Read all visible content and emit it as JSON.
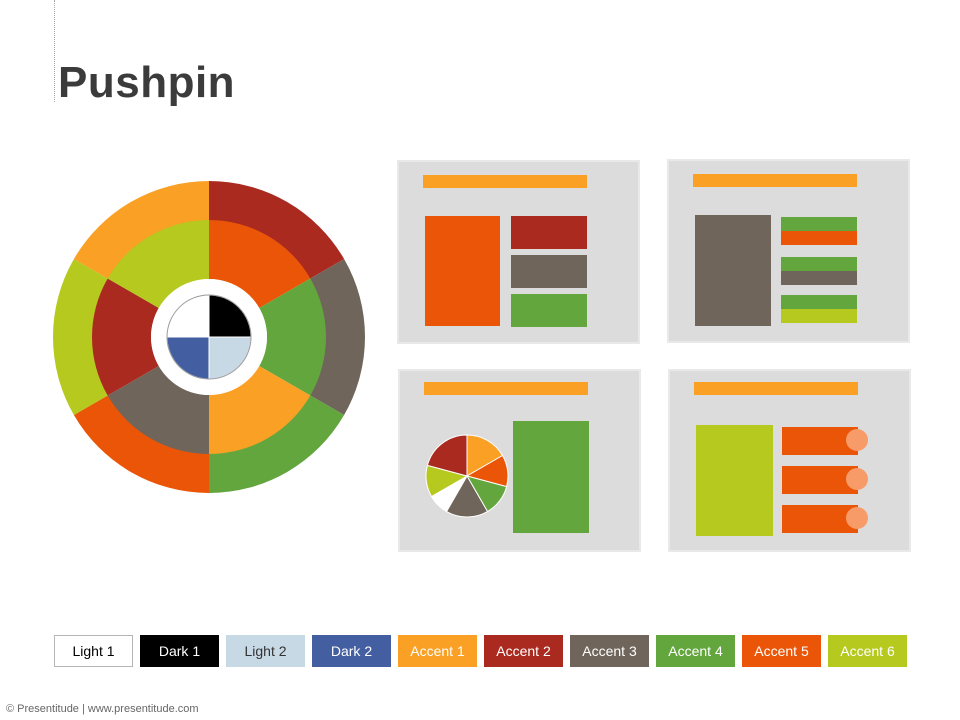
{
  "title": "Pushpin",
  "footer": "© Presentitude | www.presentitude.com",
  "colors": {
    "light1": "#ffffff",
    "dark1": "#000000",
    "light2": "#c8d9e6",
    "dark2": "#435ea1",
    "accent1": "#f9a025",
    "accent2": "#ab2a1f",
    "accent3": "#6f655a",
    "accent4": "#62a63d",
    "accent5": "#ea5507",
    "accent6": "#b5c91e",
    "placeholder_bg": "#dcdcdc",
    "pushpin_dot": "#f79b69"
  },
  "swatches": [
    {
      "label": "Light 1",
      "bg": "#ffffff",
      "fg": "#000000",
      "border": "#b5b5b5"
    },
    {
      "label": "Dark 1",
      "bg": "#000000",
      "fg": "#ffffff",
      "border": "#000000"
    },
    {
      "label": "Light 2",
      "bg": "#c8d9e6",
      "fg": "#333333",
      "border": "#c8d9e6"
    },
    {
      "label": "Dark 2",
      "bg": "#435ea1",
      "fg": "#ffffff",
      "border": "#435ea1"
    },
    {
      "label": "Accent 1",
      "bg": "#f9a025",
      "fg": "#ffffff",
      "border": "#f9a025"
    },
    {
      "label": "Accent 2",
      "bg": "#ab2a1f",
      "fg": "#ffffff",
      "border": "#ab2a1f"
    },
    {
      "label": "Accent 3",
      "bg": "#6f655a",
      "fg": "#ffffff",
      "border": "#6f655a"
    },
    {
      "label": "Accent 4",
      "bg": "#62a63d",
      "fg": "#ffffff",
      "border": "#62a63d"
    },
    {
      "label": "Accent 5",
      "bg": "#ea5507",
      "fg": "#ffffff",
      "border": "#ea5507"
    },
    {
      "label": "Accent 6",
      "bg": "#b5c91e",
      "fg": "#ffffff",
      "border": "#b5c91e"
    }
  ]
}
